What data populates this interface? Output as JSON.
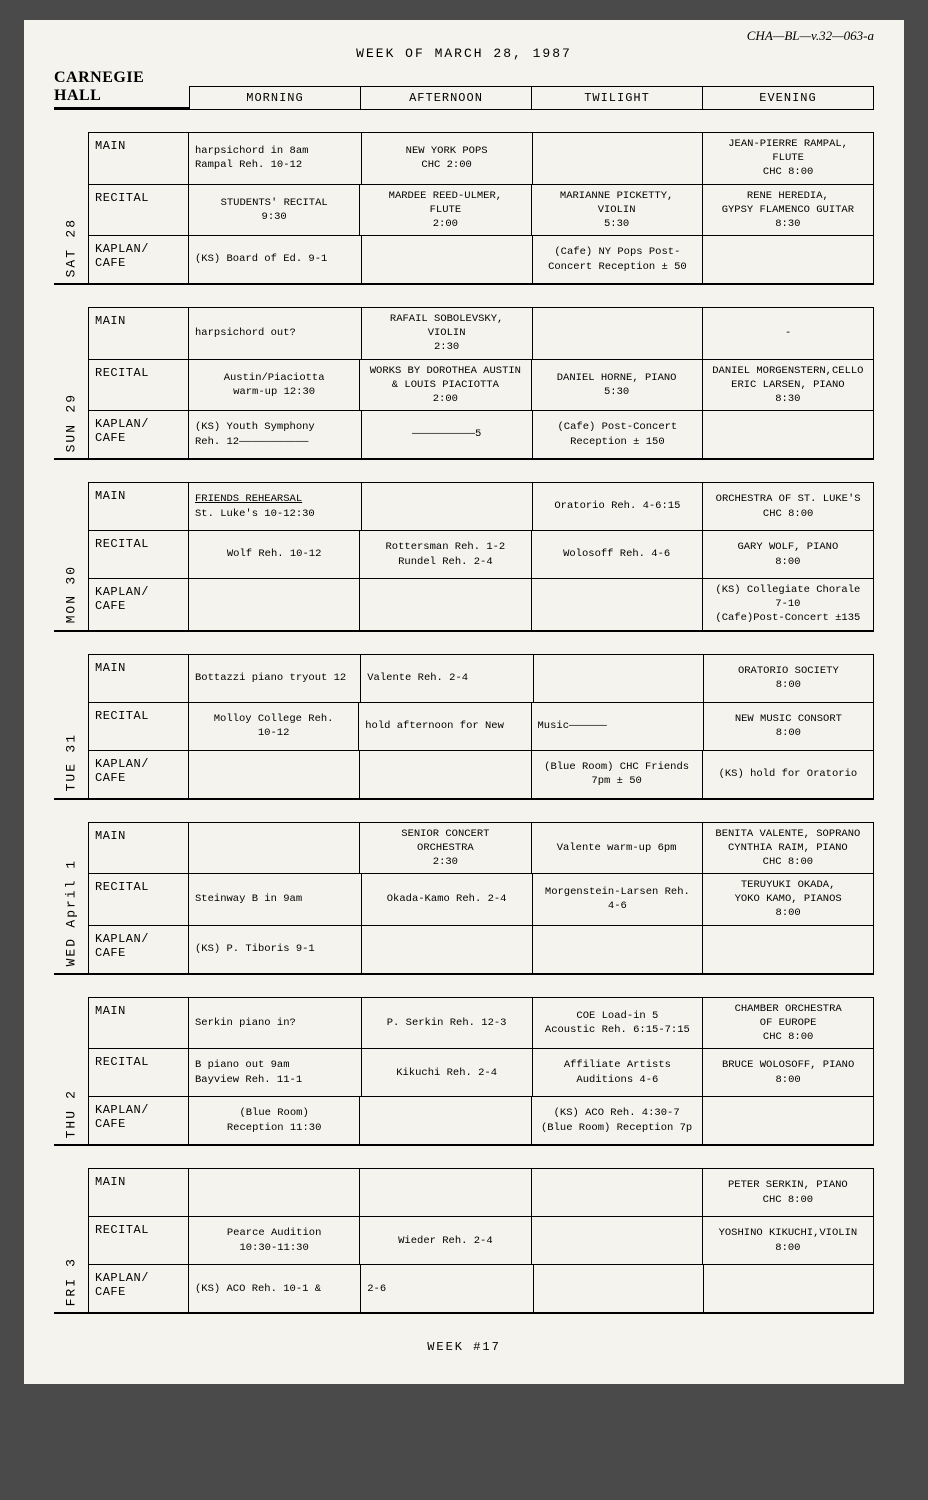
{
  "handwritten_ref": "CHA—BL—v.32—063-a",
  "week_title": "WEEK OF MARCH 28, 1987",
  "venue": "CARNEGIE HALL",
  "columns": [
    "MORNING",
    "AFTERNOON",
    "TWILIGHT",
    "EVENING"
  ],
  "row_labels": [
    "MAIN",
    "RECITAL",
    "KAPLAN/\nCAFE"
  ],
  "footer": "WEEK #17",
  "colors": {
    "page_bg": "#f5f3ee",
    "body_bg": "#4a4a4a",
    "border": "#000000",
    "text": "#000000"
  },
  "typography": {
    "body_font": "Courier New",
    "body_size_pt": 10,
    "venue_font": "Georgia",
    "venue_size_pt": 16
  },
  "days": [
    {
      "date": "28",
      "name": "SAT",
      "rows": [
        {
          "cells": [
            {
              "text": "harpsichord in 8am\nRampal Reh. 10-12",
              "align": "left"
            },
            {
              "text": "NEW YORK POPS\nCHC  2:00"
            },
            {
              "text": ""
            },
            {
              "text": "JEAN-PIERRE RAMPAL,\nFLUTE\nCHC       8:00"
            }
          ]
        },
        {
          "cells": [
            {
              "text": "STUDENTS' RECITAL\n9:30"
            },
            {
              "text": "MARDEE REED-ULMER,\nFLUTE\n2:00"
            },
            {
              "text": "MARIANNE PICKETTY,\nVIOLIN\n5:30"
            },
            {
              "text": "RENE HEREDIA,\nGYPSY FLAMENCO GUITAR\n8:30"
            }
          ]
        },
        {
          "cells": [
            {
              "text": "(KS) Board of Ed. 9-1",
              "align": "left"
            },
            {
              "text": ""
            },
            {
              "text": "(Cafe) NY Pops Post-\nConcert Reception ± 50"
            },
            {
              "text": ""
            }
          ]
        }
      ]
    },
    {
      "date": "29",
      "name": "SUN",
      "rows": [
        {
          "cells": [
            {
              "text": "harpsichord out?",
              "align": "left"
            },
            {
              "text": "RAFAIL SOBOLEVSKY,\nVIOLIN\n2:30"
            },
            {
              "text": ""
            },
            {
              "text": "-"
            }
          ]
        },
        {
          "cells": [
            {
              "text": "Austin/Piaciotta\nwarm-up 12:30"
            },
            {
              "text": "WORKS BY DOROTHEA AUSTIN\n& LOUIS PIACIOTTA\n2:00"
            },
            {
              "text": "DANIEL HORNE, PIANO\n5:30"
            },
            {
              "text": "DANIEL MORGENSTERN,CELLO\nERIC LARSEN, PIANO\n8:30"
            }
          ]
        },
        {
          "cells": [
            {
              "text": "(KS) Youth Symphony\nReh. 12———————————",
              "align": "left"
            },
            {
              "text": "——————————5"
            },
            {
              "text": "(Cafe) Post-Concert\nReception  ± 150"
            },
            {
              "text": ""
            }
          ]
        }
      ]
    },
    {
      "date": "30",
      "name": "MON",
      "rows": [
        {
          "cells": [
            {
              "html": "<span class='underline'>FRIENDS REHEARSAL</span>\nSt. Luke's 10-12:30",
              "align": "left"
            },
            {
              "text": ""
            },
            {
              "text": "Oratorio Reh. 4-6:15"
            },
            {
              "text": "ORCHESTRA OF ST. LUKE'S\nCHC  8:00"
            }
          ]
        },
        {
          "cells": [
            {
              "text": "Wolf Reh. 10-12"
            },
            {
              "text": "Rottersman Reh. 1-2\nRundel Reh. 2-4"
            },
            {
              "text": "Wolosoff Reh. 4-6"
            },
            {
              "text": "GARY WOLF, PIANO\n8:00"
            }
          ]
        },
        {
          "cells": [
            {
              "text": ""
            },
            {
              "text": ""
            },
            {
              "text": ""
            },
            {
              "text": "(KS) Collegiate Chorale\n7-10\n(Cafe)Post-Concert ±135"
            }
          ]
        }
      ]
    },
    {
      "date": "31",
      "name": "TUE",
      "rows": [
        {
          "cells": [
            {
              "text": "Bottazzi piano tryout 12",
              "align": "left"
            },
            {
              "text": "Valente Reh. 2-4",
              "align": "left"
            },
            {
              "text": ""
            },
            {
              "text": "ORATORIO SOCIETY\n8:00"
            }
          ]
        },
        {
          "cells": [
            {
              "text": "Molloy College Reh.\n10-12"
            },
            {
              "text": "hold afternoon for New",
              "align": "left"
            },
            {
              "text": "Music——————",
              "align": "left"
            },
            {
              "text": "NEW MUSIC CONSORT\n8:00"
            }
          ]
        },
        {
          "cells": [
            {
              "text": ""
            },
            {
              "text": ""
            },
            {
              "text": "(Blue Room) CHC Friends\n7pm  ± 50"
            },
            {
              "text": "(KS) hold for Oratorio"
            }
          ]
        }
      ]
    },
    {
      "date": "April 1",
      "name": "WED",
      "rows": [
        {
          "cells": [
            {
              "text": ""
            },
            {
              "text": "SENIOR CONCERT\nORCHESTRA\n2:30"
            },
            {
              "text": "Valente warm-up 6pm"
            },
            {
              "text": "BENITA VALENTE, SOPRANO\nCYNTHIA RAIM, PIANO\nCHC  8:00"
            }
          ]
        },
        {
          "cells": [
            {
              "text": "Steinway B in 9am",
              "align": "left"
            },
            {
              "text": "Okada-Kamo Reh. 2-4"
            },
            {
              "text": "Morgenstein-Larsen Reh.\n4-6"
            },
            {
              "text": "TERUYUKI OKADA,\nYOKO KAMO, PIANOS\n8:00"
            }
          ]
        },
        {
          "cells": [
            {
              "text": "(KS) P. Tiboris 9-1",
              "align": "left"
            },
            {
              "text": ""
            },
            {
              "text": ""
            },
            {
              "text": ""
            }
          ]
        }
      ]
    },
    {
      "date": "2",
      "name": "THU",
      "rows": [
        {
          "cells": [
            {
              "text": "Serkin piano in?",
              "align": "left"
            },
            {
              "text": "P. Serkin Reh. 12-3"
            },
            {
              "text": "COE Load-in 5\nAcoustic Reh. 6:15-7:15"
            },
            {
              "text": "CHAMBER ORCHESTRA\nOF EUROPE\nCHC 8:00"
            }
          ]
        },
        {
          "cells": [
            {
              "text": "B piano out 9am\nBayview Reh. 11-1",
              "align": "left"
            },
            {
              "text": "Kikuchi Reh. 2-4"
            },
            {
              "text": "Affiliate Artists\nAuditions 4-6"
            },
            {
              "text": "BRUCE WOLOSOFF, PIANO\n8:00"
            }
          ]
        },
        {
          "cells": [
            {
              "text": "(Blue Room)\nReception 11:30"
            },
            {
              "text": ""
            },
            {
              "text": "(KS) ACO Reh. 4:30-7\n(Blue Room) Reception 7p"
            },
            {
              "text": ""
            }
          ]
        }
      ]
    },
    {
      "date": "3",
      "name": "FRI",
      "rows": [
        {
          "cells": [
            {
              "text": ""
            },
            {
              "text": ""
            },
            {
              "text": ""
            },
            {
              "text": "PETER SERKIN, PIANO\nCHC  8:00"
            }
          ]
        },
        {
          "cells": [
            {
              "text": "Pearce Audition\n10:30-11:30"
            },
            {
              "text": "Wieder Reh. 2-4"
            },
            {
              "text": ""
            },
            {
              "text": "YOSHINO KIKUCHI,VIOLIN\n8:00"
            }
          ]
        },
        {
          "cells": [
            {
              "text": "(KS) ACO Reh. 10-1  &",
              "align": "left"
            },
            {
              "text": "2-6",
              "align": "left"
            },
            {
              "text": ""
            },
            {
              "text": ""
            }
          ]
        }
      ]
    }
  ]
}
